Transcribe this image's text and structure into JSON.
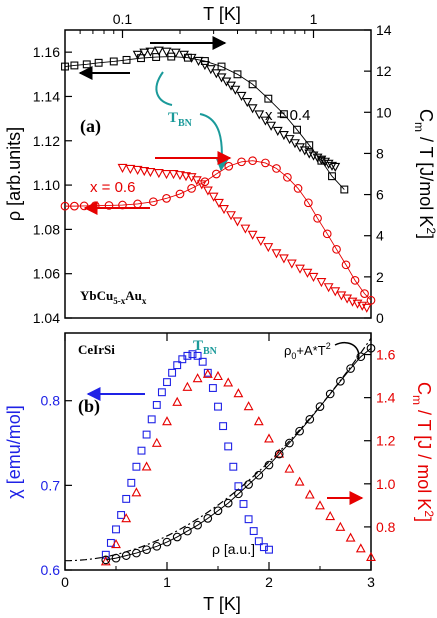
{
  "chart_data": [
    {
      "panel": "(a)",
      "type": "scatter",
      "material": {
        "base": "YbCu",
        "sub1": "5-x",
        "mid": "Au",
        "sub2": "x"
      },
      "x_top": {
        "label": "T [K]",
        "scale": "log",
        "ticks": [
          0.1,
          1
        ],
        "tick_labels": [
          "0.1",
          "1"
        ],
        "range": [
          0.05,
          2.0
        ]
      },
      "y_left": {
        "label": "ρ [arb.units]",
        "range": [
          1.04,
          1.17
        ],
        "ticks": [
          1.04,
          1.06,
          1.08,
          1.1,
          1.12,
          1.14,
          1.16
        ],
        "tick_labels": [
          "1.04",
          "1.06",
          "1.08",
          "1.10",
          "1.12",
          "1.14",
          "1.16"
        ]
      },
      "y_right": {
        "label_base": "C",
        "label_sub": "m",
        "label_rest": " / T  [J/mol K",
        "label_sup": "2",
        "label_end": "]",
        "range": [
          0,
          14
        ],
        "ticks": [
          0,
          2,
          4,
          6,
          8,
          10,
          12,
          14
        ],
        "tick_labels": [
          "0",
          "2",
          "4",
          "6",
          "8",
          "10",
          "12",
          "14"
        ]
      },
      "annotations": {
        "tbn_base": "T",
        "tbn_sub": "BN",
        "x04": "x = 0.4",
        "x06": "x = 0.6"
      },
      "series": [
        {
          "label": "x = 0.4",
          "quantity": "C/T",
          "axis": "right",
          "marker": "triangle-down",
          "color": "#000000",
          "x": [
            0.12,
            0.13,
            0.14,
            0.155,
            0.17,
            0.19,
            0.21,
            0.23,
            0.25,
            0.27,
            0.29,
            0.31,
            0.33,
            0.35,
            0.37,
            0.39,
            0.42,
            0.45,
            0.48,
            0.52,
            0.56,
            0.6,
            0.65,
            0.7,
            0.75,
            0.8,
            0.85,
            0.9,
            0.95,
            1.0,
            1.05,
            1.1,
            1.15,
            1.2,
            1.25,
            1.3
          ],
          "y": [
            12.8,
            12.9,
            12.95,
            13.0,
            12.95,
            12.9,
            12.8,
            12.65,
            12.5,
            12.3,
            12.1,
            11.9,
            11.7,
            11.5,
            11.3,
            11.1,
            10.8,
            10.5,
            10.2,
            9.9,
            9.6,
            9.35,
            9.1,
            8.9,
            8.7,
            8.5,
            8.3,
            8.15,
            8.0,
            7.9,
            7.8,
            7.7,
            7.6,
            7.5,
            7.4,
            7.35
          ]
        },
        {
          "label": "x = 0.4",
          "quantity": "ρ",
          "axis": "left",
          "marker": "square",
          "color": "#000000",
          "x": [
            0.05,
            0.056,
            0.065,
            0.075,
            0.09,
            0.105,
            0.125,
            0.15,
            0.18,
            0.22,
            0.27,
            0.33,
            0.4,
            0.48,
            0.58,
            0.7,
            0.82,
            0.95,
            1.1,
            1.25,
            1.45
          ],
          "y": [
            1.1535,
            1.154,
            1.1545,
            1.1552,
            1.1558,
            1.1565,
            1.1573,
            1.1578,
            1.158,
            1.1575,
            1.156,
            1.1535,
            1.15,
            1.1455,
            1.139,
            1.132,
            1.125,
            1.118,
            1.111,
            1.104,
            1.098
          ]
        },
        {
          "label": "x = 0.6",
          "quantity": "C/T",
          "axis": "right",
          "marker": "triangle-down",
          "color": "#e60000",
          "x": [
            0.1,
            0.11,
            0.12,
            0.13,
            0.14,
            0.155,
            0.17,
            0.185,
            0.2,
            0.215,
            0.23,
            0.245,
            0.26,
            0.28,
            0.3,
            0.32,
            0.34,
            0.37,
            0.4,
            0.44,
            0.48,
            0.53,
            0.58,
            0.64,
            0.7,
            0.77,
            0.85,
            0.93,
            1.0,
            1.1,
            1.2,
            1.3,
            1.4,
            1.5,
            1.6,
            1.7,
            1.8,
            1.9
          ],
          "y": [
            7.3,
            7.25,
            7.2,
            7.15,
            7.1,
            7.05,
            7.0,
            7.0,
            6.95,
            6.9,
            6.85,
            6.7,
            6.5,
            6.2,
            5.9,
            5.6,
            5.3,
            5.0,
            4.7,
            4.35,
            4.05,
            3.75,
            3.45,
            3.15,
            2.9,
            2.65,
            2.4,
            2.2,
            2.0,
            1.75,
            1.5,
            1.3,
            1.1,
            0.95,
            0.8,
            0.7,
            0.6,
            0.5
          ]
        },
        {
          "label": "x = 0.6",
          "quantity": "ρ",
          "axis": "left",
          "marker": "circle",
          "color": "#e60000",
          "x": [
            0.05,
            0.056,
            0.063,
            0.072,
            0.085,
            0.1,
            0.12,
            0.145,
            0.17,
            0.2,
            0.23,
            0.27,
            0.31,
            0.36,
            0.42,
            0.48,
            0.56,
            0.64,
            0.73,
            0.83,
            0.94,
            1.05,
            1.18,
            1.32,
            1.48,
            1.65,
            1.85,
            2.0
          ],
          "y": [
            1.0905,
            1.0905,
            1.0906,
            1.0907,
            1.0908,
            1.091,
            1.0915,
            1.0925,
            1.094,
            1.096,
            1.0985,
            1.1015,
            1.105,
            1.1085,
            1.1105,
            1.111,
            1.11,
            1.1075,
            1.1035,
            1.0985,
            1.092,
            1.085,
            1.078,
            1.071,
            1.064,
            1.057,
            1.051,
            1.048
          ]
        }
      ]
    },
    {
      "panel": "(b)",
      "type": "scatter",
      "material": "CeIrSi",
      "x": {
        "label": "T  [K]",
        "range": [
          0,
          3
        ],
        "ticks": [
          0,
          1,
          2,
          3
        ],
        "tick_labels": [
          "0",
          "1",
          "2",
          "3"
        ]
      },
      "y_left": {
        "label": "χ [emu/mol]",
        "color": "#1f22e6",
        "range": [
          0.6,
          0.88
        ],
        "ticks": [
          0.6,
          0.7,
          0.8
        ],
        "tick_labels": [
          "0.6",
          "0.7",
          "0.8"
        ]
      },
      "y_right": {
        "label_base": "C",
        "label_sub": "m",
        "label_rest": " / T  [J / mol K",
        "label_sup": "2",
        "label_end": "]",
        "color": "#e60000",
        "range": [
          0.6,
          1.7
        ],
        "ticks": [
          0.8,
          1.0,
          1.2,
          1.4,
          1.6
        ],
        "tick_labels": [
          "0.8",
          "1.0",
          "1.2",
          "1.4",
          "1.6"
        ]
      },
      "annotations": {
        "tbn_base": "T",
        "tbn_sub": "BN",
        "rho": "ρ [a.u.]",
        "fit": "ρ0+A*T2",
        "fit_base": "ρ",
        "fit_sub": "0",
        "fit_mid": "+A*T",
        "fit_sup": "2"
      },
      "series": [
        {
          "quantity": "χ",
          "axis": "left",
          "marker": "square",
          "color": "#1f22e6",
          "x": [
            0.4,
            0.45,
            0.5,
            0.55,
            0.6,
            0.65,
            0.7,
            0.75,
            0.8,
            0.85,
            0.9,
            0.95,
            1.0,
            1.05,
            1.1,
            1.15,
            1.2,
            1.25,
            1.3,
            1.35,
            1.4,
            1.45,
            1.5,
            1.55,
            1.6,
            1.65,
            1.7,
            1.75,
            1.8,
            1.85,
            1.9,
            1.95,
            2.0
          ],
          "y": [
            0.618,
            0.632,
            0.648,
            0.665,
            0.684,
            0.703,
            0.722,
            0.741,
            0.76,
            0.778,
            0.795,
            0.81,
            0.822,
            0.833,
            0.842,
            0.849,
            0.853,
            0.855,
            0.853,
            0.846,
            0.833,
            0.815,
            0.793,
            0.77,
            0.746,
            0.722,
            0.699,
            0.678,
            0.66,
            0.646,
            0.634,
            0.627,
            0.624
          ]
        },
        {
          "quantity": "C/T",
          "axis": "right",
          "marker": "triangle-up",
          "color": "#e60000",
          "x": [
            0.4,
            0.5,
            0.6,
            0.7,
            0.8,
            0.9,
            1.0,
            1.1,
            1.2,
            1.3,
            1.4,
            1.5,
            1.6,
            1.7,
            1.8,
            1.9,
            2.0,
            2.1,
            2.2,
            2.3,
            2.4,
            2.5,
            2.6,
            2.7,
            2.8,
            2.9,
            3.0
          ],
          "y": [
            0.64,
            0.72,
            0.84,
            0.96,
            1.08,
            1.19,
            1.29,
            1.38,
            1.45,
            1.49,
            1.51,
            1.5,
            1.47,
            1.42,
            1.36,
            1.29,
            1.21,
            1.14,
            1.07,
            1.01,
            0.95,
            0.9,
            0.85,
            0.8,
            0.75,
            0.7,
            0.66
          ]
        },
        {
          "quantity": "ρ",
          "axis": "left",
          "marker": "circle",
          "color": "#000000",
          "x": [
            0.4,
            0.5,
            0.6,
            0.7,
            0.8,
            0.9,
            1.0,
            1.1,
            1.2,
            1.3,
            1.4,
            1.5,
            1.6,
            1.7,
            1.8,
            1.9,
            2.0,
            2.1,
            2.2,
            2.3,
            2.4,
            2.5,
            2.6,
            2.7,
            2.8,
            2.9,
            3.0
          ],
          "y": [
            0.612,
            0.614,
            0.617,
            0.62,
            0.624,
            0.628,
            0.633,
            0.639,
            0.646,
            0.653,
            0.661,
            0.67,
            0.679,
            0.69,
            0.701,
            0.712,
            0.724,
            0.737,
            0.75,
            0.764,
            0.778,
            0.793,
            0.808,
            0.823,
            0.838,
            0.852,
            0.862
          ]
        }
      ]
    }
  ]
}
